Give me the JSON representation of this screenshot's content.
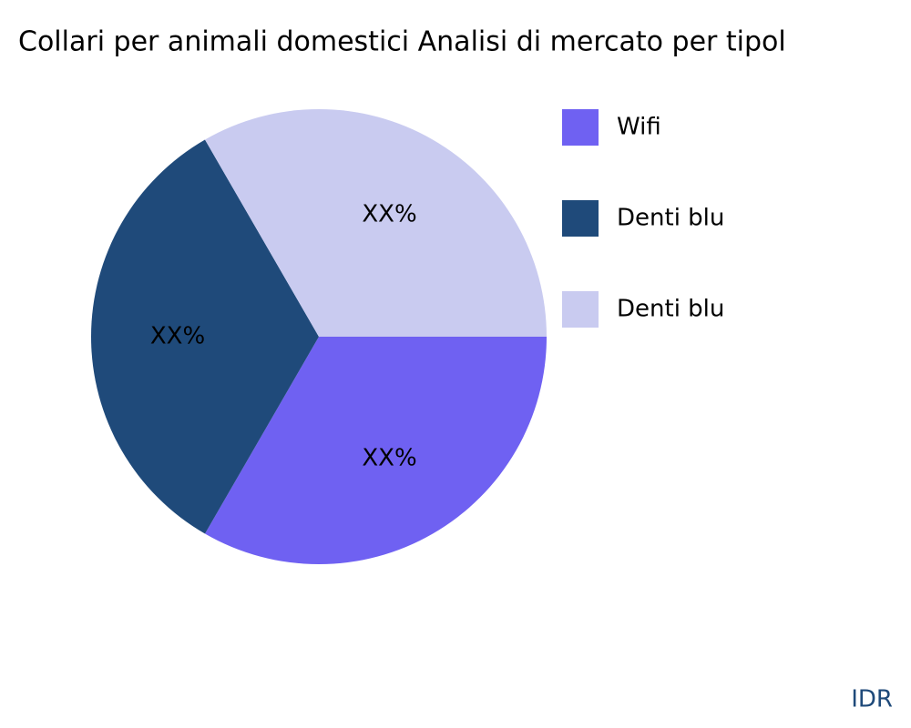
{
  "chart_data": {
    "type": "pie",
    "title": "Collari per animali domestici Analisi di mercato per tipol",
    "categories": [
      "Wifi",
      "Denti blu",
      "Denti blu"
    ],
    "values": [
      33.3,
      33.3,
      33.3
    ],
    "value_labels": [
      "XX%",
      "XX%",
      "XX%"
    ],
    "colors": [
      "#6f61f2",
      "#1f4a7a",
      "#c9cbf0"
    ],
    "watermark": "IDR"
  }
}
